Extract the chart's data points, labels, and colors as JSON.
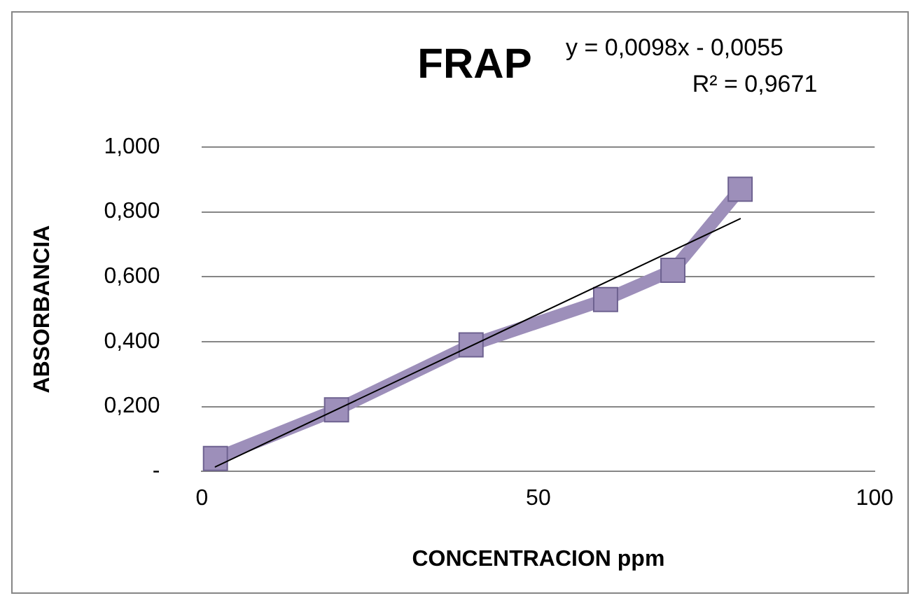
{
  "chart_data": {
    "type": "line",
    "title": "FRAP",
    "xlabel": "CONCENTRACION ppm",
    "ylabel": "ABSORBANCIA",
    "x": [
      2,
      20,
      40,
      60,
      70,
      80
    ],
    "series": [
      {
        "color": "#9d8fba",
        "values": [
          0.04,
          0.19,
          0.39,
          0.53,
          0.62,
          0.87
        ]
      },
      {
        "type": "line",
        "x": [
          2,
          80
        ],
        "values": [
          0.014,
          0.779
        ],
        "color": "#000000",
        "marker": "none"
      }
    ],
    "xlim": [
      0,
      100
    ],
    "xticks": [
      0,
      50,
      100
    ],
    "ylim": [
      0,
      1
    ],
    "yticks": [
      {
        "value": 0,
        "label": "-"
      },
      {
        "value": 0.2,
        "label": "0,200"
      },
      {
        "value": 0.4,
        "label": "0,400"
      },
      {
        "value": 0.6,
        "label": "0,600"
      },
      {
        "value": 0.8,
        "label": "0,800"
      },
      {
        "value": 1,
        "label": "1,000"
      }
    ],
    "grid": "y",
    "legend": false,
    "marker": "square",
    "annotations": [
      "y = 0,0098x - 0,0055",
      "R² = 0,9671"
    ]
  }
}
